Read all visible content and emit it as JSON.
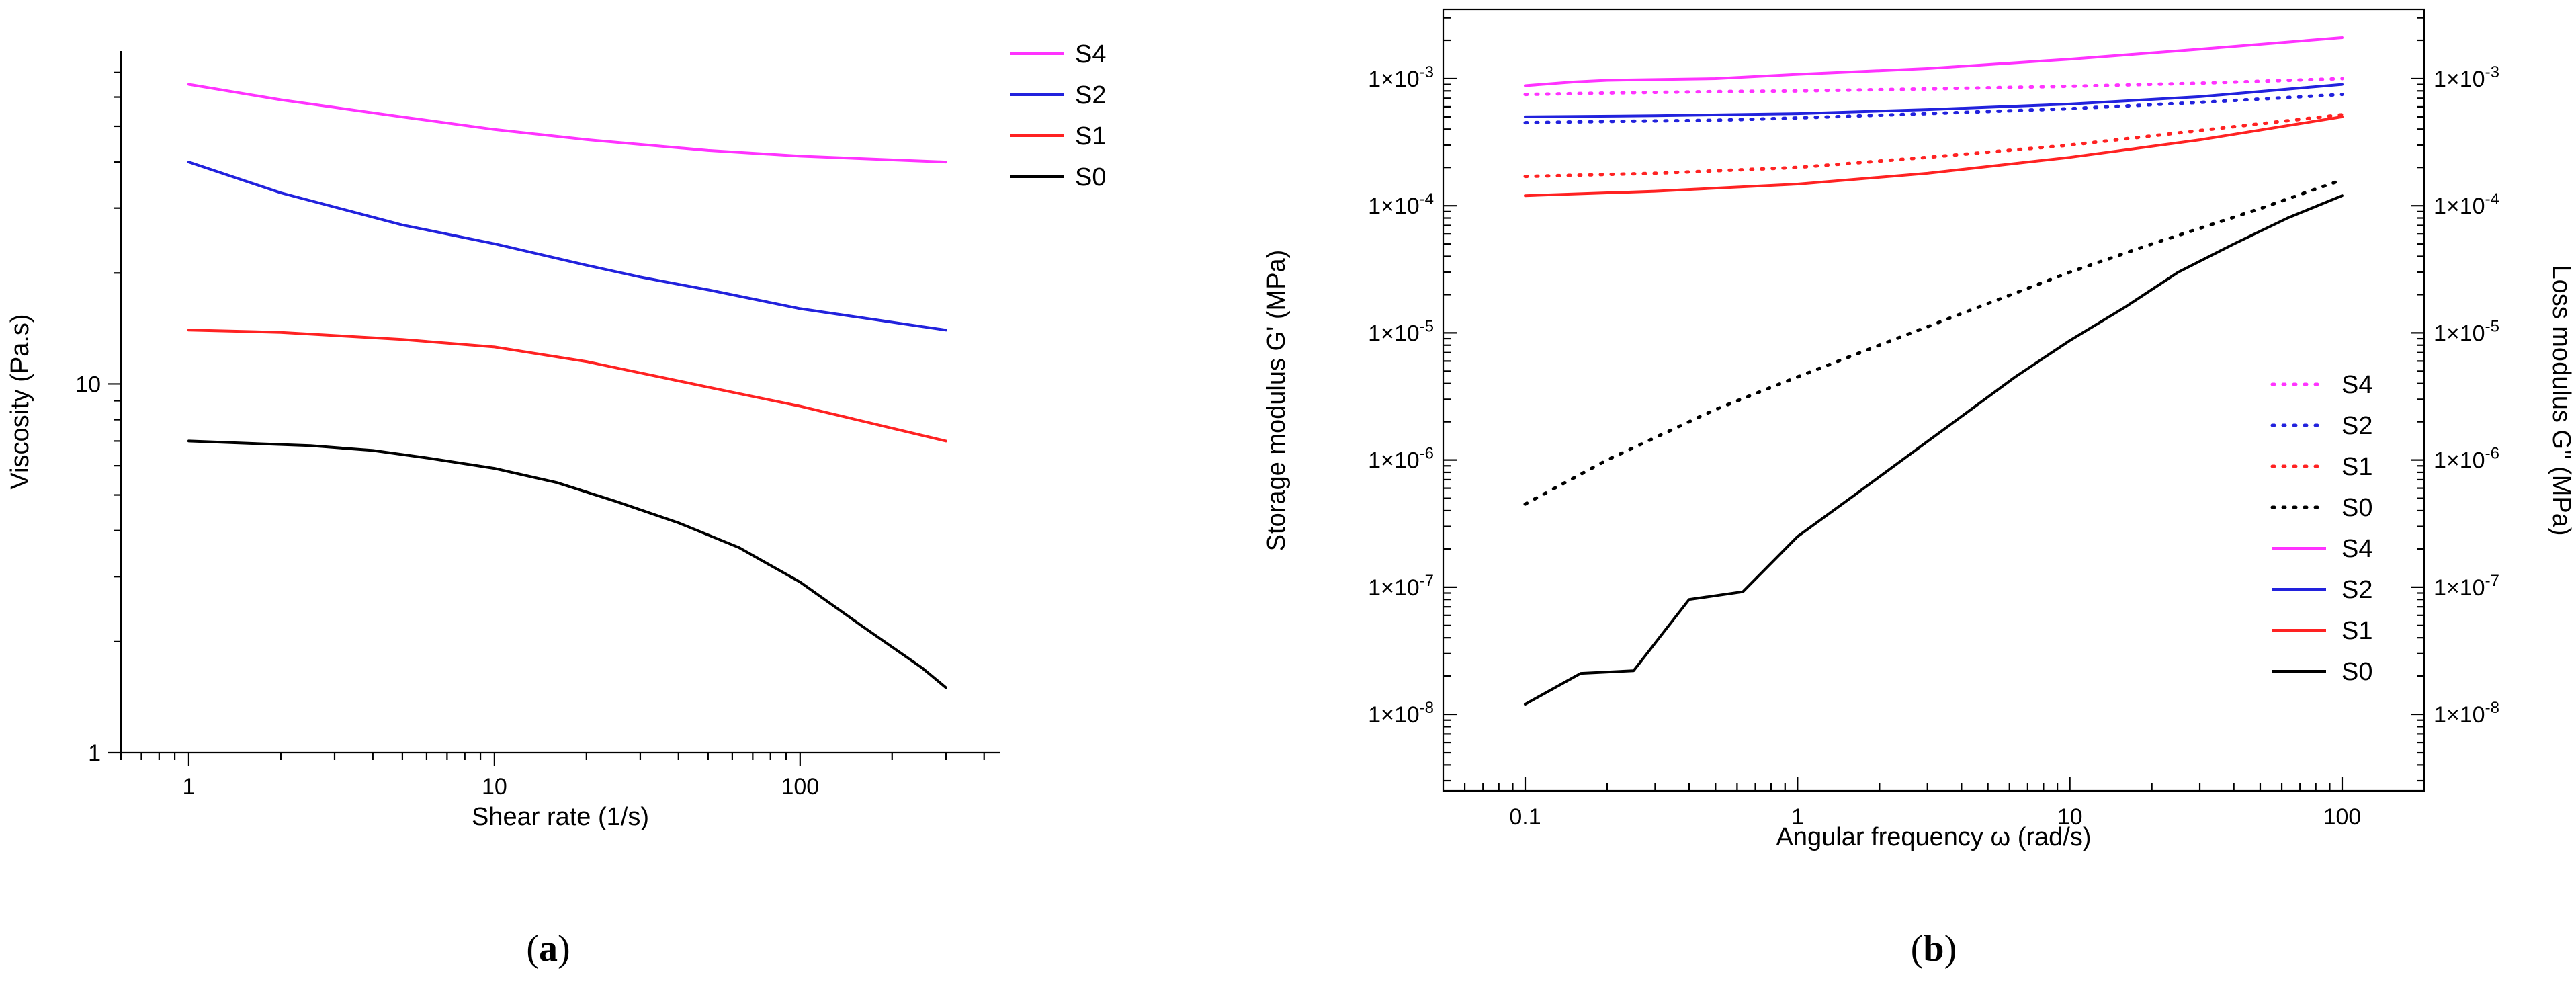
{
  "chart_data": [
    {
      "type": "line",
      "panel": "a",
      "panel_label": {
        "open": "(",
        "letter": "a",
        "close": ")"
      },
      "xlabel": "Shear rate (1/s)",
      "ylabel": "Viscosity (Pa.s)",
      "xscale": "log",
      "yscale": "log",
      "xlim": [
        0.6,
        450
      ],
      "ylim": [
        1,
        80
      ],
      "xticks": [
        {
          "value": 1,
          "label": "1"
        },
        {
          "value": 10,
          "label": "10"
        },
        {
          "value": 100,
          "label": "100"
        }
      ],
      "yticks": [
        {
          "value": 1,
          "label": "1"
        },
        {
          "value": 10,
          "label": "10"
        }
      ],
      "legend_position": "top-right",
      "series": [
        {
          "name": "S4",
          "color": "#ff33ff",
          "x": [
            1,
            2,
            5,
            10,
            20,
            50,
            100,
            300
          ],
          "y": [
            65,
            59,
            53,
            49,
            46,
            43,
            41.5,
            40
          ]
        },
        {
          "name": "S2",
          "color": "#2222dd",
          "x": [
            1,
            2,
            5,
            10,
            20,
            30,
            50,
            100,
            300
          ],
          "y": [
            40,
            33,
            27,
            24,
            21,
            19.5,
            18,
            16,
            14
          ]
        },
        {
          "name": "S1",
          "color": "#ff2222",
          "x": [
            1,
            2,
            5,
            10,
            20,
            50,
            100,
            300
          ],
          "y": [
            14,
            13.8,
            13.2,
            12.6,
            11.5,
            9.8,
            8.7,
            7
          ]
        },
        {
          "name": "S0",
          "color": "#000000",
          "x": [
            1,
            2.5,
            4,
            6,
            10,
            16,
            25,
            40,
            63,
            100,
            160,
            250,
            300
          ],
          "y": [
            7,
            6.8,
            6.6,
            6.3,
            5.9,
            5.4,
            4.8,
            4.2,
            3.6,
            2.9,
            2.2,
            1.7,
            1.5
          ]
        }
      ]
    },
    {
      "type": "line",
      "panel": "b",
      "panel_label": {
        "open": "(",
        "letter": "b",
        "close": ")"
      },
      "xlabel": "Angular frequency ω (rad/s)",
      "ylabel": "Storage modulus G' (MPa)",
      "ylabel_right": "Loss modulus G'' (MPa)",
      "xscale": "log",
      "yscale": "log",
      "xlim": [
        0.05,
        200
      ],
      "ylim": [
        2.5e-09,
        0.0035
      ],
      "xticks": [
        {
          "value": 0.1,
          "label": "0.1"
        },
        {
          "value": 1,
          "label": "1"
        },
        {
          "value": 10,
          "label": "10"
        },
        {
          "value": 100,
          "label": "100"
        }
      ],
      "yticks": [
        {
          "value": 1e-08,
          "base": "1×10",
          "exp": "-8"
        },
        {
          "value": 1e-07,
          "base": "1×10",
          "exp": "-7"
        },
        {
          "value": 1e-06,
          "base": "1×10",
          "exp": "-6"
        },
        {
          "value": 1e-05,
          "base": "1×10",
          "exp": "-5"
        },
        {
          "value": 0.0001,
          "base": "1×10",
          "exp": "-4"
        },
        {
          "value": 0.001,
          "base": "1×10",
          "exp": "-3"
        }
      ],
      "legend_position": "center-right",
      "series": [
        {
          "name": "S4",
          "modulus": "loss G''",
          "style": "dotted",
          "color": "#ff33ff",
          "x": [
            0.1,
            0.2,
            0.5,
            1,
            3,
            10,
            30,
            100
          ],
          "y": [
            0.00075,
            0.00077,
            0.00079,
            0.0008,
            0.00083,
            0.00087,
            0.00092,
            0.001
          ]
        },
        {
          "name": "S2",
          "modulus": "loss G''",
          "style": "dotted",
          "color": "#2222dd",
          "x": [
            0.1,
            0.2,
            0.5,
            1,
            3,
            10,
            30,
            100
          ],
          "y": [
            0.00045,
            0.00046,
            0.00047,
            0.00049,
            0.00053,
            0.00058,
            0.00065,
            0.00075
          ]
        },
        {
          "name": "S1",
          "modulus": "loss G''",
          "style": "dotted",
          "color": "#ff2222",
          "x": [
            0.1,
            0.3,
            1,
            3,
            10,
            30,
            100
          ],
          "y": [
            0.00017,
            0.00018,
            0.0002,
            0.00024,
            0.0003,
            0.00039,
            0.00052
          ]
        },
        {
          "name": "S0",
          "modulus": "loss G''",
          "style": "dotted",
          "color": "#000000",
          "x": [
            0.1,
            0.2,
            0.5,
            1,
            2,
            5,
            10,
            20,
            50,
            100
          ],
          "y": [
            4.5e-07,
            1e-06,
            2.5e-06,
            4.5e-06,
            8e-06,
            1.7e-05,
            3e-05,
            5e-05,
            9.5e-05,
            0.00016
          ]
        },
        {
          "name": "S4",
          "modulus": "storage G'",
          "style": "solid",
          "color": "#ff33ff",
          "x": [
            0.1,
            0.15,
            0.2,
            0.5,
            1,
            3,
            10,
            30,
            100
          ],
          "y": [
            0.00088,
            0.00094,
            0.00097,
            0.001,
            0.00108,
            0.0012,
            0.00142,
            0.0017,
            0.0021
          ]
        },
        {
          "name": "S2",
          "modulus": "storage G'",
          "style": "solid",
          "color": "#2222dd",
          "x": [
            0.1,
            0.3,
            1,
            3,
            10,
            30,
            100
          ],
          "y": [
            0.0005,
            0.00051,
            0.00053,
            0.00057,
            0.00063,
            0.00072,
            0.0009
          ]
        },
        {
          "name": "S1",
          "modulus": "storage G'",
          "style": "solid",
          "color": "#ff2222",
          "x": [
            0.1,
            0.3,
            1,
            3,
            10,
            30,
            100
          ],
          "y": [
            0.00012,
            0.00013,
            0.000148,
            0.00018,
            0.00024,
            0.00033,
            0.0005
          ]
        },
        {
          "name": "S0",
          "modulus": "storage G'",
          "style": "solid",
          "color": "#000000",
          "x": [
            0.1,
            0.16,
            0.25,
            0.4,
            0.63,
            1,
            1.6,
            2.5,
            4,
            6.3,
            10,
            16,
            25,
            40,
            63,
            100
          ],
          "y": [
            1.2e-08,
            2.1e-08,
            2.2e-08,
            8e-08,
            9.2e-08,
            2.5e-07,
            5.2e-07,
            1.05e-06,
            2.2e-06,
            4.5e-06,
            8.7e-06,
            1.6e-05,
            3e-05,
            5e-05,
            8e-05,
            0.00012
          ]
        }
      ]
    }
  ]
}
